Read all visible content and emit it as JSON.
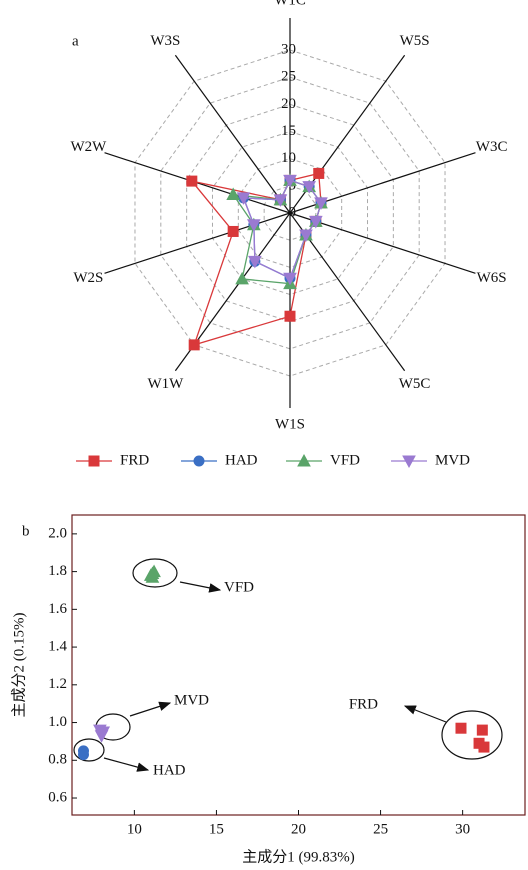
{
  "chart_data": [
    {
      "type": "radar",
      "label": "a",
      "categories": [
        "W1C",
        "W5S",
        "W3C",
        "W6S",
        "W5C",
        "W1S",
        "W1W",
        "W2S",
        "W2W",
        "W3S"
      ],
      "rlim": [
        0,
        30
      ],
      "rticks": [
        0,
        5,
        10,
        15,
        20,
        25,
        30
      ],
      "grid": true,
      "legend": "bottom",
      "series": [
        {
          "name": "FRD",
          "color": "#d9383a",
          "marker": "square",
          "values": [
            6,
            9,
            6,
            5,
            5,
            19,
            30,
            11,
            19,
            3
          ]
        },
        {
          "name": "HAD",
          "color": "#3a6fc4",
          "marker": "circle",
          "values": [
            6,
            6,
            6,
            5,
            5,
            12,
            11,
            7,
            9,
            3
          ]
        },
        {
          "name": "VFD",
          "color": "#5aa469",
          "marker": "triangle",
          "values": [
            6,
            6,
            6,
            5,
            5,
            13,
            15,
            7,
            11,
            3
          ]
        },
        {
          "name": "MVD",
          "color": "#9a7ad1",
          "marker": "triangle-down",
          "values": [
            6,
            6,
            6,
            5,
            5,
            12,
            11,
            7,
            9,
            3
          ]
        }
      ]
    },
    {
      "type": "scatter",
      "label": "b",
      "x_label": "主成分1 (99.83%)",
      "y_label": "主成分2 (0.15%)",
      "xlim": [
        6.2,
        33.8
      ],
      "ylim": [
        0.51,
        2.1
      ],
      "xticks": [
        10,
        15,
        20,
        25,
        30
      ],
      "yticks": [
        0.6,
        0.8,
        {
          "value": 1.0,
          "label": "1.0"
        },
        1.2,
        1.4,
        1.6,
        1.8,
        {
          "value": 2.0,
          "label": "2.0"
        }
      ],
      "series": [
        {
          "name": "FRD",
          "color": "#d9383a",
          "marker": "square",
          "x": [
            29.9,
            31.2,
            31.0,
            31.3
          ],
          "y": [
            0.97,
            0.96,
            0.89,
            0.87
          ]
        },
        {
          "name": "HAD",
          "color": "#3a6fc4",
          "marker": "circle",
          "x": [
            6.9,
            6.9
          ],
          "y": [
            0.85,
            0.83
          ]
        },
        {
          "name": "VFD",
          "color": "#5aa469",
          "marker": "triangle",
          "x": [
            11.1,
            11.1,
            11.2,
            11.0
          ],
          "y": [
            1.77,
            1.79,
            1.8,
            1.78
          ]
        },
        {
          "name": "MVD",
          "color": "#9a7ad1",
          "marker": "triangle-down",
          "x": [
            7.9,
            8.0,
            8.1
          ],
          "y": [
            0.96,
            0.93,
            0.95
          ]
        }
      ]
    }
  ]
}
